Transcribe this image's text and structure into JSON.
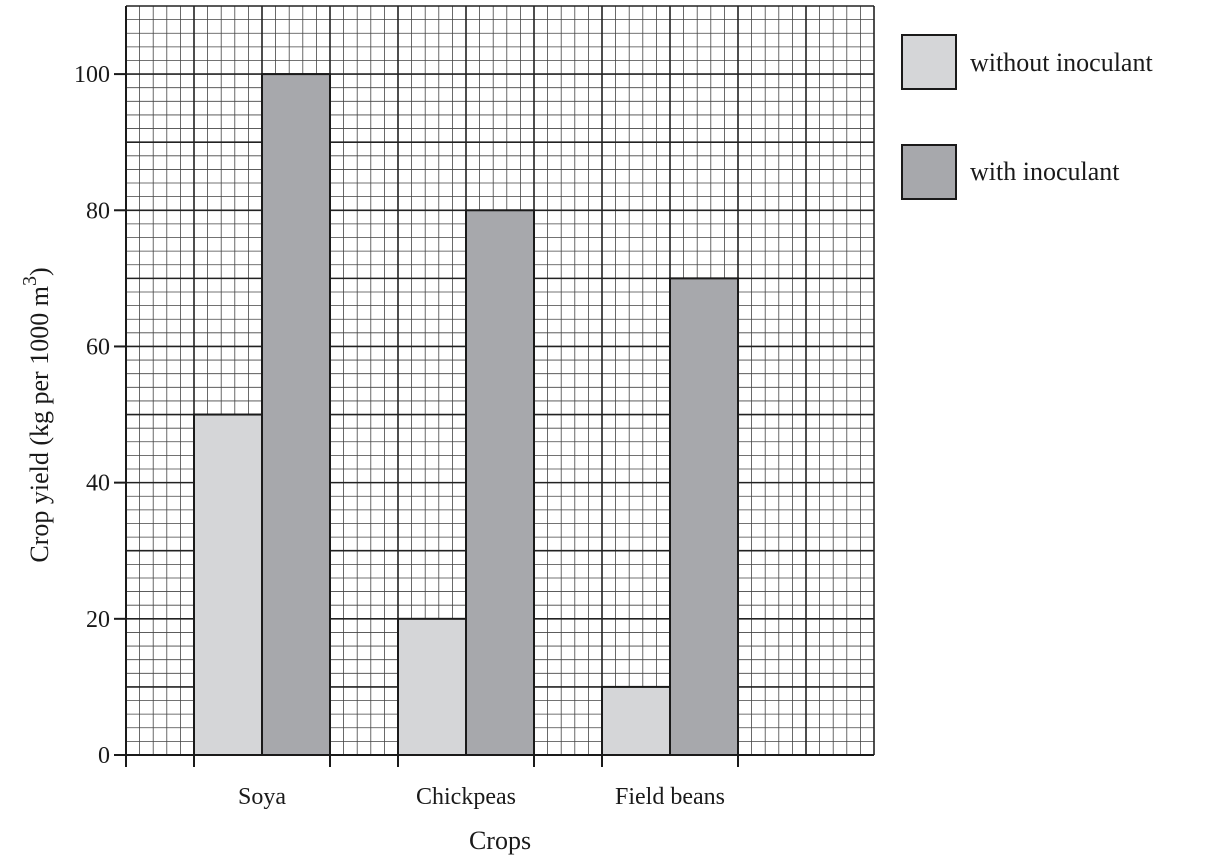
{
  "chart_data": {
    "type": "bar",
    "categories": [
      "Soya",
      "Chickpeas",
      "Field beans"
    ],
    "series": [
      {
        "name": "without inoculant",
        "values": [
          50,
          20,
          10
        ],
        "color": "#d5d6d8"
      },
      {
        "name": "with inoculant",
        "values": [
          100,
          80,
          70
        ],
        "color": "#a7a8ac"
      }
    ],
    "y_ticks": [
      0,
      20,
      40,
      60,
      80,
      100
    ],
    "ylim": [
      0,
      110
    ],
    "xlabel": "Crops",
    "ylabel": "Crop yield (kg per 1000 m",
    "ylabel_superscript": "3",
    "ylabel_suffix": ")",
    "grid": true,
    "legend_position": "right"
  }
}
